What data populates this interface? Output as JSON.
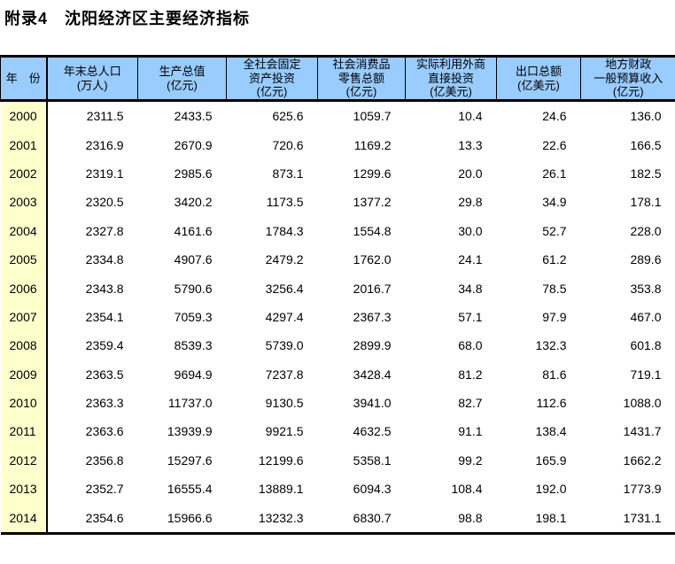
{
  "page_title": "附录4　沈阳经济区主要经济指标",
  "colors": {
    "header_bg": "#99CCFF",
    "year_column_bg": "#FFFFCC",
    "border": "#000000",
    "text": "#000000"
  },
  "table": {
    "columns": [
      {
        "name": "year",
        "lines": [
          "年　份"
        ]
      },
      {
        "name": "population",
        "lines": [
          "年末总人口",
          "(万人)"
        ]
      },
      {
        "name": "gdp",
        "lines": [
          "生产总值",
          "(亿元)"
        ]
      },
      {
        "name": "fixed-asset-investment",
        "lines": [
          "全社会固定",
          "资产投资",
          "(亿元)"
        ]
      },
      {
        "name": "retail-sales",
        "lines": [
          "社会消费品",
          "零售总额",
          "(亿元)"
        ]
      },
      {
        "name": "fdi-utilized",
        "lines": [
          "实际利用外商",
          "直接投资",
          "(亿美元)"
        ]
      },
      {
        "name": "total-exports",
        "lines": [
          "出口总额",
          "(亿美元)"
        ]
      },
      {
        "name": "fiscal-revenue",
        "lines": [
          "地方财政",
          "一般预算收入",
          "(亿元)"
        ]
      }
    ],
    "rows": [
      {
        "year": "2000",
        "values": [
          "2311.5",
          "2433.5",
          "625.6",
          "1059.7",
          "10.4",
          "24.6",
          "136.0"
        ]
      },
      {
        "year": "2001",
        "values": [
          "2316.9",
          "2670.9",
          "720.6",
          "1169.2",
          "13.3",
          "22.6",
          "166.5"
        ]
      },
      {
        "year": "2002",
        "values": [
          "2319.1",
          "2985.6",
          "873.1",
          "1299.6",
          "20.0",
          "26.1",
          "182.5"
        ]
      },
      {
        "year": "2003",
        "values": [
          "2320.5",
          "3420.2",
          "1173.5",
          "1377.2",
          "29.8",
          "34.9",
          "178.1"
        ]
      },
      {
        "year": "2004",
        "values": [
          "2327.8",
          "4161.6",
          "1784.3",
          "1554.8",
          "30.0",
          "52.7",
          "228.0"
        ]
      },
      {
        "year": "2005",
        "values": [
          "2334.8",
          "4907.6",
          "2479.2",
          "1762.0",
          "24.1",
          "61.2",
          "289.6"
        ]
      },
      {
        "year": "2006",
        "values": [
          "2343.8",
          "5790.6",
          "3256.4",
          "2016.7",
          "34.8",
          "78.5",
          "353.8"
        ]
      },
      {
        "year": "2007",
        "values": [
          "2354.1",
          "7059.3",
          "4297.4",
          "2367.3",
          "57.1",
          "97.9",
          "467.0"
        ]
      },
      {
        "year": "2008",
        "values": [
          "2359.4",
          "8539.3",
          "5739.0",
          "2899.9",
          "68.0",
          "132.3",
          "601.8"
        ]
      },
      {
        "year": "2009",
        "values": [
          "2363.5",
          "9694.9",
          "7237.8",
          "3428.4",
          "81.2",
          "81.6",
          "719.1"
        ]
      },
      {
        "year": "2010",
        "values": [
          "2363.3",
          "11737.0",
          "9130.5",
          "3941.0",
          "82.7",
          "112.6",
          "1088.0"
        ]
      },
      {
        "year": "2011",
        "values": [
          "2363.6",
          "13939.9",
          "9921.5",
          "4632.5",
          "91.1",
          "138.4",
          "1431.7"
        ]
      },
      {
        "year": "2012",
        "values": [
          "2356.8",
          "15297.6",
          "12199.6",
          "5358.1",
          "99.2",
          "165.9",
          "1662.2"
        ]
      },
      {
        "year": "2013",
        "values": [
          "2352.7",
          "16555.4",
          "13889.1",
          "6094.3",
          "108.4",
          "192.0",
          "1773.9"
        ]
      },
      {
        "year": "2014",
        "values": [
          "2354.6",
          "15966.6",
          "13232.3",
          "6830.7",
          "98.8",
          "198.1",
          "1731.1"
        ]
      }
    ]
  }
}
